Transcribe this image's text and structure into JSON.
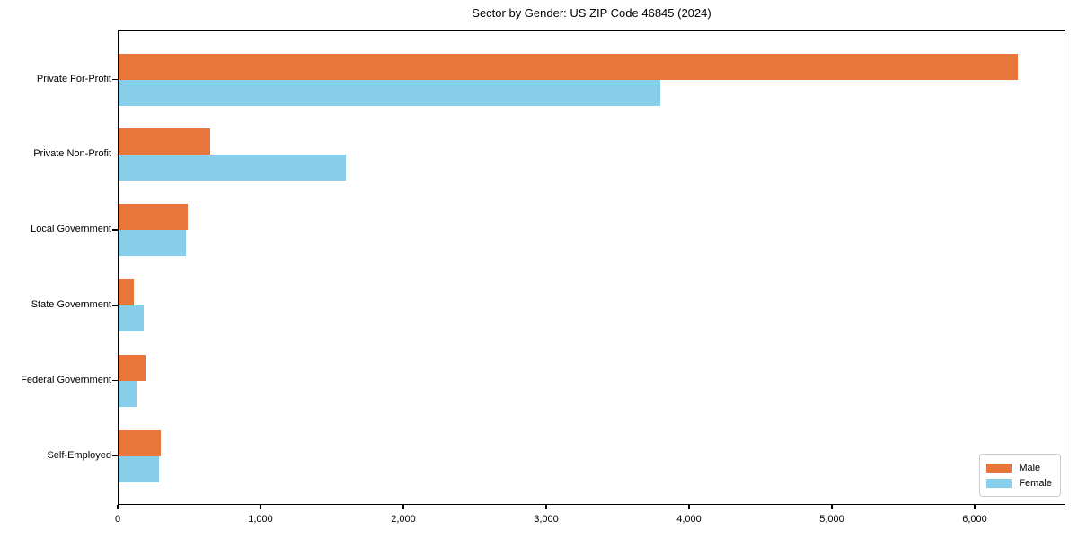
{
  "chart_data": {
    "type": "bar",
    "orientation": "horizontal",
    "title": "Sector by Gender: US ZIP Code 46845 (2024)",
    "categories": [
      "Private For-Profit",
      "Private Non-Profit",
      "Local Government",
      "State Government",
      "Federal Government",
      "Self-Employed"
    ],
    "series": [
      {
        "name": "Male",
        "color": "#e8763b",
        "values": [
          6300,
          650,
          490,
          110,
          195,
          300
        ]
      },
      {
        "name": "Female",
        "color": "#87ceeb",
        "values": [
          3800,
          1600,
          480,
          180,
          130,
          290
        ]
      }
    ],
    "xlabel": "",
    "ylabel": "",
    "xlim": [
      0,
      6635
    ],
    "xticks": [
      0,
      1000,
      2000,
      3000,
      4000,
      5000,
      6000
    ],
    "xtick_labels": [
      "0",
      "1,000",
      "2,000",
      "3,000",
      "4,000",
      "5,000",
      "6,000"
    ],
    "grid": false,
    "legend_position": "lower right",
    "plot_border_color": "#000000",
    "background_color": "#ffffff"
  }
}
